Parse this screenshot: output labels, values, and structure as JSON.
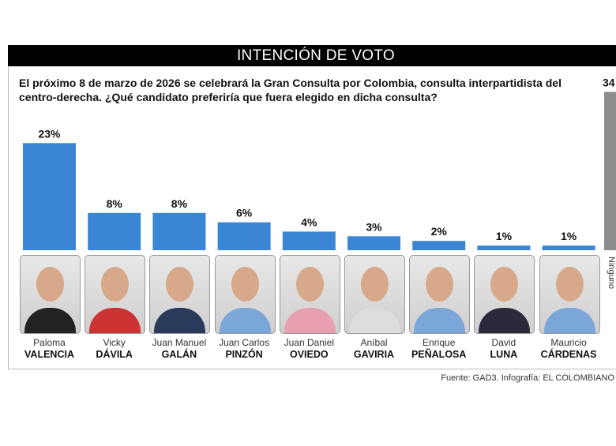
{
  "header": {
    "title": "INTENCIÓN DE VOTO"
  },
  "question": "El próximo 8 de marzo de 2026 se celebrará la Gran Consulta por Colombia, consulta interpartidista del centro-derecha. ¿Qué candidato preferiría que fuera elegido en dicha consulta?",
  "source": "Fuente: GAD3. Infografía: EL COLOMBIANO",
  "chart_data": {
    "type": "bar",
    "unit": "%",
    "categories": [
      "Paloma VALENCIA",
      "Vicky DÁVILA",
      "Juan Manuel GALÁN",
      "Juan Carlos PINZÓN",
      "Juan Daniel OVIEDO",
      "Aníbal GAVIRIA",
      "Enrique PEÑALOSA",
      "David LUNA",
      "Mauricio CÁRDENAS",
      "Ninguno"
    ],
    "values": [
      23,
      8,
      8,
      6,
      4,
      3,
      2,
      1,
      1,
      34
    ],
    "data_labels": [
      "23%",
      "8%",
      "8%",
      "6%",
      "4%",
      "3%",
      "2%",
      "1%",
      "1%",
      "34"
    ],
    "candidates": [
      {
        "first": "Paloma",
        "last": "VALENCIA"
      },
      {
        "first": "Vicky",
        "last": "DÁVILA"
      },
      {
        "first": "Juan Manuel",
        "last": "GALÁN"
      },
      {
        "first": "Juan Carlos",
        "last": "PINZÓN"
      },
      {
        "first": "Juan Daniel",
        "last": "OVIEDO"
      },
      {
        "first": "Aníbal",
        "last": "GAVIRIA"
      },
      {
        "first": "Enrique",
        "last": "PEÑALOSA"
      },
      {
        "first": "David",
        "last": "LUNA"
      },
      {
        "first": "Mauricio",
        "last": "CÁRDENAS"
      }
    ],
    "other_label": "Ninguno",
    "colors": {
      "candidate": "#3a86d4",
      "other": "#8c8c8c"
    }
  }
}
